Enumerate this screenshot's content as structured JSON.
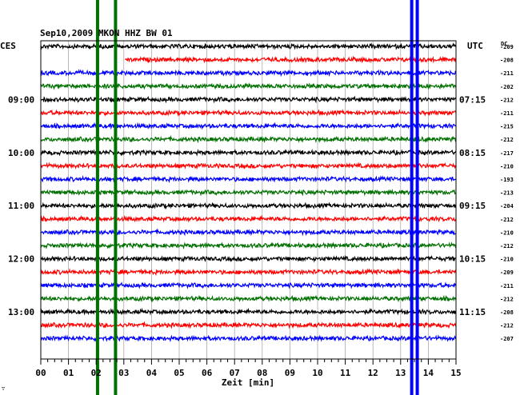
{
  "chart_data": {
    "type": "line",
    "title": "Sep10,2009  MKON HHZ BW 01",
    "left_timezone": "CES",
    "right_timezone": "UTC",
    "dc_header": "DC",
    "xlabel": "Zeit [min]",
    "x_ticks": [
      "00",
      "01",
      "02",
      "03",
      "04",
      "05",
      "06",
      "07",
      "08",
      "09",
      "10",
      "11",
      "12",
      "13",
      "14",
      "15"
    ],
    "xlim": [
      0,
      15
    ],
    "left_time_labels": [
      {
        "trace": 4,
        "text": "09:00"
      },
      {
        "trace": 8,
        "text": "10:00"
      },
      {
        "trace": 12,
        "text": "11:00"
      },
      {
        "trace": 16,
        "text": "12:00"
      },
      {
        "trace": 20,
        "text": "13:00"
      }
    ],
    "right_time_labels": [
      {
        "trace": 4,
        "text": "07:15"
      },
      {
        "trace": 8,
        "text": "08:15"
      },
      {
        "trace": 12,
        "text": "09:15"
      },
      {
        "trace": 16,
        "text": "10:15"
      },
      {
        "trace": 20,
        "text": "11:15"
      }
    ],
    "trace_colors": [
      "#000000",
      "#ff0000",
      "#0000ff",
      "#007000"
    ],
    "dc_offsets": [
      "-209",
      "-208",
      "-211",
      "-202",
      "-212",
      "-211",
      "-215",
      "-212",
      "-217",
      "-210",
      "-193",
      "-213",
      "-204",
      "-212",
      "-210",
      "-212",
      "-210",
      "-209",
      "-211",
      "-212",
      "-208",
      "-212",
      "-207"
    ],
    "first_trace_start_min": 0,
    "second_trace_start_min": 3.05,
    "event_markers": [
      {
        "minute": 2.05,
        "color": "#007000",
        "label": "green-marker"
      },
      {
        "minute": 2.7,
        "color": "#007000",
        "label": "green-marker"
      },
      {
        "minute": 13.4,
        "color": "#0000ff",
        "label": "blue-marker"
      },
      {
        "minute": 13.6,
        "color": "#0000ff",
        "label": "blue-marker"
      }
    ],
    "footnote": "∵"
  }
}
